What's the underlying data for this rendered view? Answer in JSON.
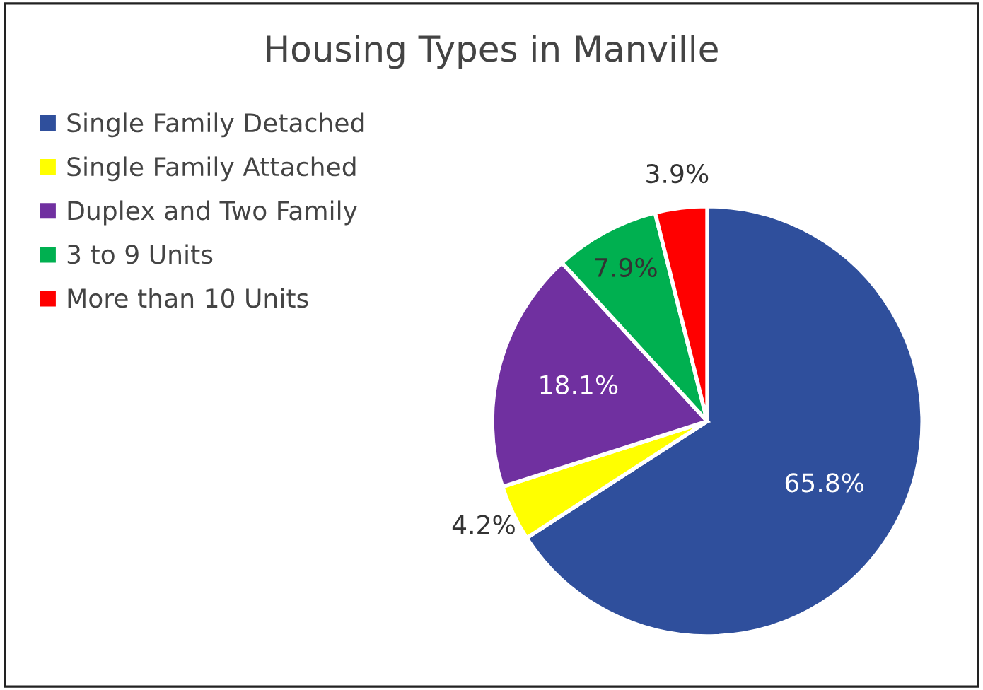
{
  "chart_data": {
    "type": "pie",
    "title": "Housing Types in Manville",
    "categories": [
      "Single Family Detached",
      "Single Family Attached",
      "Duplex and Two Family",
      "3 to 9 Units",
      "More than 10 Units"
    ],
    "values": [
      65.8,
      4.2,
      18.1,
      7.9,
      3.9
    ],
    "colors": [
      "#2f4f9c",
      "#ffff00",
      "#7030a0",
      "#00b050",
      "#ff0000"
    ],
    "value_labels": [
      "65.8%",
      "4.2%",
      "18.1%",
      "7.9%",
      "3.9%"
    ],
    "legend": "top left"
  }
}
